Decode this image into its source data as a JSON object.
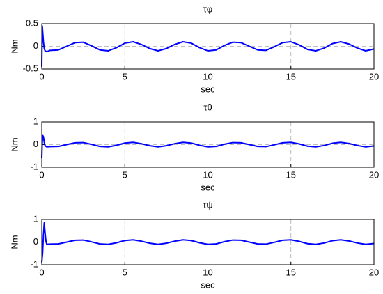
{
  "chart_data": [
    {
      "type": "line",
      "title": "τφ",
      "xlabel": "sec",
      "ylabel": "Nm",
      "color": "#0000ff",
      "grid": true,
      "xlim": [
        0,
        20
      ],
      "xticks": [
        0,
        5,
        10,
        15,
        20
      ],
      "ylim": [
        -0.5,
        0.5
      ],
      "yticks": [
        -0.5,
        0,
        0.5
      ],
      "x": [
        0,
        0.03,
        0.06,
        0.1,
        0.15,
        0.2,
        0.3,
        0.5,
        1,
        1.5,
        2,
        2.5,
        3,
        3.5,
        4,
        4.5,
        5,
        5.5,
        6,
        6.5,
        7,
        7.5,
        8,
        8.5,
        9,
        9.5,
        10,
        10.5,
        11,
        11.5,
        12,
        12.5,
        13,
        13.5,
        14,
        14.5,
        15,
        15.5,
        16,
        16.5,
        17,
        17.5,
        18,
        18.5,
        19,
        19.5,
        20
      ],
      "values": [
        -0.45,
        0.45,
        0.3,
        0.1,
        -0.05,
        -0.1,
        -0.12,
        -0.09,
        -0.08,
        0,
        0.08,
        0.09,
        0.01,
        -0.08,
        -0.1,
        -0.03,
        0.07,
        0.1,
        0.04,
        -0.05,
        -0.1,
        -0.05,
        0.04,
        0.1,
        0.07,
        -0.03,
        -0.1,
        -0.08,
        0.02,
        0.09,
        0.08,
        0,
        -0.08,
        -0.09,
        -0.01,
        0.08,
        0.1,
        0.03,
        -0.07,
        -0.1,
        -0.04,
        0.06,
        0.1,
        0.05,
        -0.04,
        -0.1,
        -0.06
      ]
    },
    {
      "type": "line",
      "title": "τθ",
      "xlabel": "sec",
      "ylabel": "Nm",
      "color": "#0000ff",
      "grid": true,
      "xlim": [
        0,
        20
      ],
      "xticks": [
        0,
        5,
        10,
        15,
        20
      ],
      "ylim": [
        -1,
        1
      ],
      "yticks": [
        -1,
        0,
        1
      ],
      "x": [
        0,
        0.03,
        0.06,
        0.1,
        0.15,
        0.2,
        0.3,
        0.5,
        1,
        1.5,
        2,
        2.5,
        3,
        3.5,
        4,
        4.5,
        5,
        5.5,
        6,
        6.5,
        7,
        7.5,
        8,
        8.5,
        9,
        9.5,
        10,
        10.5,
        11,
        11.5,
        12,
        12.5,
        13,
        13.5,
        14,
        14.5,
        15,
        15.5,
        16,
        16.5,
        17,
        17.5,
        18,
        18.5,
        19,
        19.5,
        20
      ],
      "values": [
        -0.6,
        0.1,
        0.4,
        0.35,
        0.1,
        -0.05,
        -0.1,
        -0.09,
        -0.08,
        0,
        0.08,
        0.09,
        0.01,
        -0.08,
        -0.1,
        -0.03,
        0.07,
        0.1,
        0.04,
        -0.05,
        -0.1,
        -0.05,
        0.04,
        0.1,
        0.07,
        -0.03,
        -0.1,
        -0.08,
        0.02,
        0.09,
        0.08,
        0,
        -0.08,
        -0.09,
        -0.01,
        0.08,
        0.1,
        0.03,
        -0.07,
        -0.1,
        -0.04,
        0.06,
        0.1,
        0.05,
        -0.04,
        -0.1,
        -0.06
      ]
    },
    {
      "type": "line",
      "title": "τψ",
      "xlabel": "sec",
      "ylabel": "Nm",
      "color": "#0000ff",
      "grid": true,
      "xlim": [
        0,
        20
      ],
      "xticks": [
        0,
        5,
        10,
        15,
        20
      ],
      "ylim": [
        -1,
        1
      ],
      "yticks": [
        -1,
        0,
        1
      ],
      "x": [
        0,
        0.05,
        0.1,
        0.15,
        0.2,
        0.25,
        0.3,
        0.5,
        1,
        1.5,
        2,
        2.5,
        3,
        3.5,
        4,
        4.5,
        5,
        5.5,
        6,
        6.5,
        7,
        7.5,
        8,
        8.5,
        9,
        9.5,
        10,
        10.5,
        11,
        11.5,
        12,
        12.5,
        13,
        13.5,
        14,
        14.5,
        15,
        15.5,
        16,
        16.5,
        17,
        17.5,
        18,
        18.5,
        19,
        19.5,
        20
      ],
      "values": [
        -0.9,
        -0.5,
        0.3,
        0.85,
        0.4,
        0.05,
        -0.1,
        -0.09,
        -0.08,
        0,
        0.08,
        0.09,
        0.01,
        -0.08,
        -0.1,
        -0.03,
        0.07,
        0.1,
        0.04,
        -0.05,
        -0.1,
        -0.05,
        0.04,
        0.1,
        0.07,
        -0.03,
        -0.1,
        -0.08,
        0.02,
        0.09,
        0.08,
        0,
        -0.08,
        -0.09,
        -0.01,
        0.08,
        0.1,
        0.03,
        -0.07,
        -0.1,
        -0.04,
        0.06,
        0.1,
        0.05,
        -0.04,
        -0.1,
        -0.06
      ]
    }
  ]
}
